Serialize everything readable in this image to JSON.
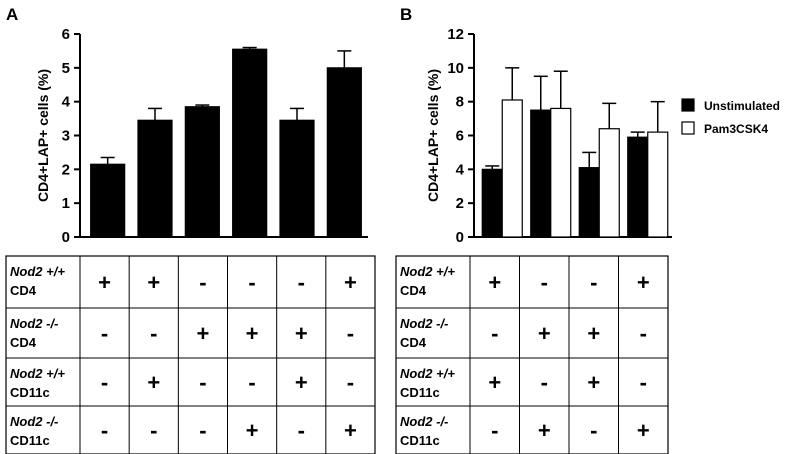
{
  "chart_data": [
    {
      "panel": "A",
      "type": "bar",
      "ylabel": "CD4+LAP+ cells (%)",
      "ylim": [
        0,
        6
      ],
      "yticks": [
        "0",
        "1",
        "2",
        "3",
        "4",
        "5",
        "6"
      ],
      "series": [
        {
          "name": "",
          "color": "#000000",
          "values": [
            2.15,
            3.45,
            3.85,
            5.55,
            3.45,
            5.0
          ],
          "errors": [
            0.2,
            0.35,
            0.05,
            0.05,
            0.35,
            0.5
          ]
        }
      ],
      "table": {
        "rows": [
          {
            "name": "Nod2 +/+",
            "cell": "CD4",
            "signs": [
              "+",
              "+",
              "-",
              "-",
              "-",
              "+"
            ]
          },
          {
            "name": "Nod2 -/-",
            "cell": "CD4",
            "signs": [
              "-",
              "-",
              "+",
              "+",
              "+",
              "-"
            ]
          },
          {
            "name": "Nod2 +/+",
            "cell": "CD11c",
            "signs": [
              "-",
              "+",
              "-",
              "-",
              "+",
              "-"
            ]
          },
          {
            "name": "Nod2 -/-",
            "cell": "CD11c",
            "signs": [
              "-",
              "-",
              "-",
              "+",
              "-",
              "+"
            ]
          }
        ]
      }
    },
    {
      "panel": "B",
      "type": "bar",
      "ylabel": "CD4+LAP+ cells (%)",
      "ylim": [
        0,
        12
      ],
      "yticks": [
        "0",
        "2",
        "4",
        "6",
        "8",
        "10",
        "12"
      ],
      "series": [
        {
          "name": "Unstimulated",
          "color": "#000000",
          "values": [
            4.0,
            7.5,
            4.1,
            5.9
          ],
          "errors": [
            0.2,
            2.0,
            0.9,
            0.3
          ]
        },
        {
          "name": "Pam3CSK4",
          "color": "#ffffff",
          "values": [
            8.1,
            7.6,
            6.4,
            6.2
          ],
          "errors": [
            1.9,
            2.2,
            1.5,
            1.8
          ]
        }
      ],
      "legend": [
        "Unstimulated",
        "Pam3CSK4"
      ],
      "table": {
        "rows": [
          {
            "name": "Nod2 +/+",
            "cell": "CD4",
            "signs": [
              "+",
              "-",
              "-",
              "+"
            ]
          },
          {
            "name": "Nod2 -/-",
            "cell": "CD4",
            "signs": [
              "-",
              "+",
              "+",
              "-"
            ]
          },
          {
            "name": "Nod2 +/+",
            "cell": "CD11c",
            "signs": [
              "+",
              "-",
              "+",
              "-"
            ]
          },
          {
            "name": "Nod2 -/-",
            "cell": "CD11c",
            "signs": [
              "-",
              "+",
              "-",
              "+"
            ]
          }
        ]
      }
    }
  ]
}
